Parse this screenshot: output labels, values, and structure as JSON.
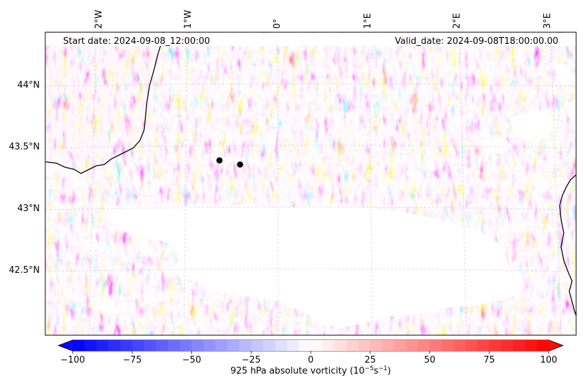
{
  "header": {
    "start_date": "Start date: 2024-09-08_12:00:00",
    "valid_date": "Valid_date: 2024-09-08T18:00:00.00"
  },
  "map": {
    "lon_labels": [
      "2°W",
      "1°W",
      "0°",
      "1°E",
      "2°E",
      "3°E"
    ],
    "lat_labels": [
      "44°N",
      "43.5°N",
      "43°N",
      "42.5°N"
    ],
    "markers": [
      {
        "name": "marker-1"
      },
      {
        "name": "marker-2"
      }
    ]
  },
  "colorbar": {
    "ticks": [
      "−100",
      "−75",
      "−50",
      "−25",
      "0",
      "25",
      "50",
      "75",
      "100"
    ],
    "label_main": "925 hPa absolute vorticity (10",
    "label_exp1": "−5",
    "label_mid": "s",
    "label_exp2": "−1",
    "label_end": ")",
    "color_min": "#0000ff",
    "color_mid": "#ffffff",
    "color_max": "#ff0000"
  }
}
